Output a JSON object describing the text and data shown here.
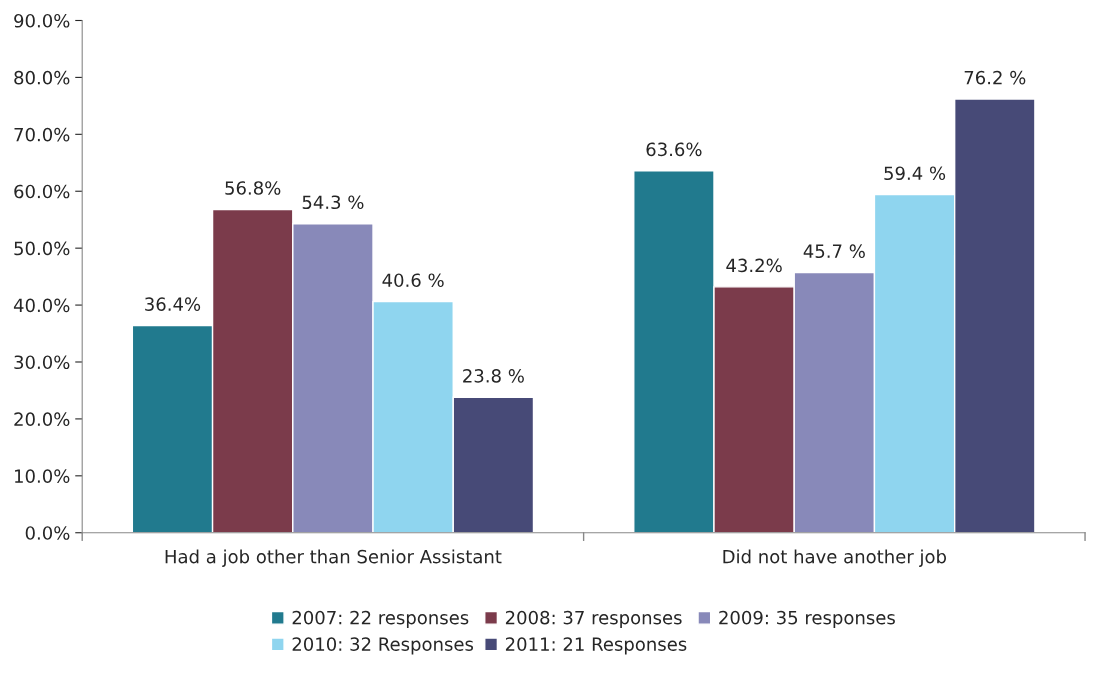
{
  "chart_data": {
    "type": "bar",
    "categories": [
      "Had a job other than Senior Assistant",
      "Did not have another job"
    ],
    "series": [
      {
        "name": "2007: 22 responses",
        "color": "#217a8e",
        "values": [
          36.4,
          63.6
        ],
        "value_labels": [
          "36.4%",
          "63.6%"
        ]
      },
      {
        "name": "2008: 37 responses",
        "color": "#7b3b4b",
        "values": [
          56.8,
          43.2
        ],
        "value_labels": [
          "56.8%",
          "43.2%"
        ]
      },
      {
        "name": "2009: 35 responses",
        "color": "#8889b9",
        "values": [
          54.3,
          45.7
        ],
        "value_labels": [
          "54.3 %",
          "45.7 %"
        ]
      },
      {
        "name": "2010: 32 Responses",
        "color": "#8fd5ef",
        "values": [
          40.6,
          59.4
        ],
        "value_labels": [
          "40.6 %",
          "59.4 %"
        ]
      },
      {
        "name": "2011: 21 Responses",
        "color": "#474a77",
        "values": [
          23.8,
          76.2
        ],
        "value_labels": [
          "23.8 %",
          "76.2 %"
        ]
      }
    ],
    "ylim": [
      0,
      90
    ],
    "yticks": [
      {
        "value": 0,
        "label": "0.0%"
      },
      {
        "value": 10,
        "label": "10.0%"
      },
      {
        "value": 20,
        "label": "20.0%"
      },
      {
        "value": 30,
        "label": "30.0%"
      },
      {
        "value": 40,
        "label": "40.0%"
      },
      {
        "value": 50,
        "label": "50.0%"
      },
      {
        "value": 60,
        "label": "60.0%"
      },
      {
        "value": 70,
        "label": "70.0%"
      },
      {
        "value": 80,
        "label": "80.0%"
      },
      {
        "value": 90,
        "label": "90.0%"
      }
    ],
    "grid": false,
    "legend": "bottom"
  }
}
